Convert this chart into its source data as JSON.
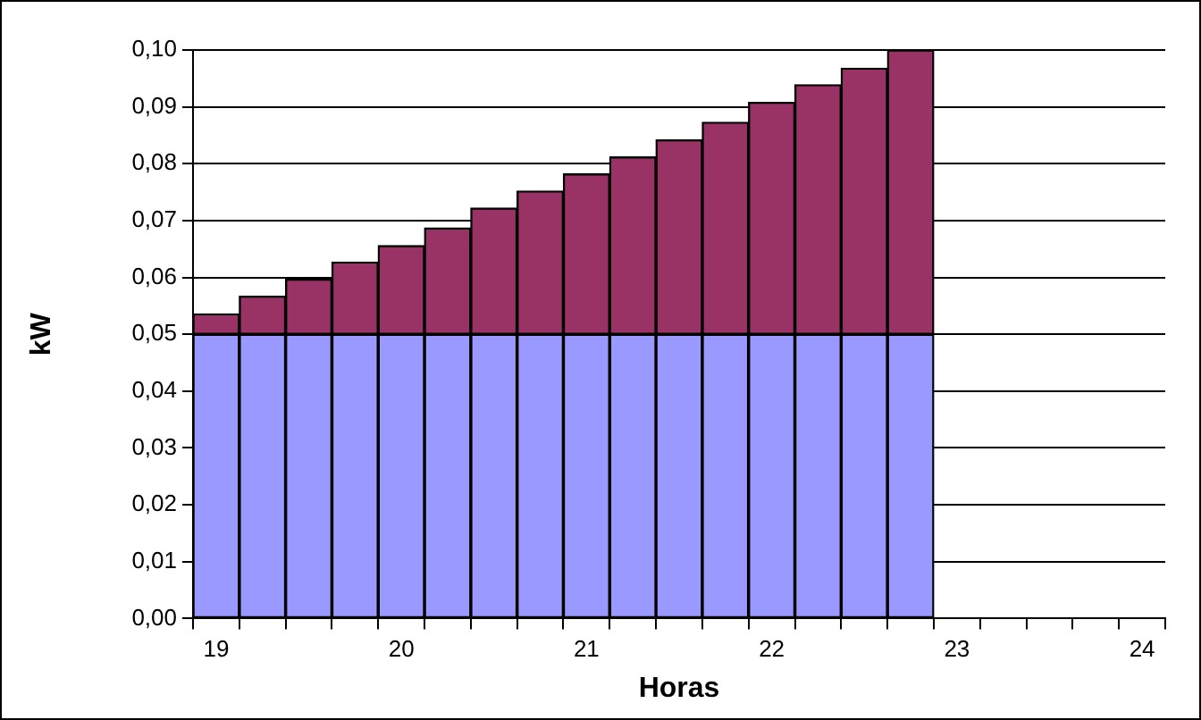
{
  "chart_data": {
    "type": "bar",
    "stacked": true,
    "xlabel": "Horas",
    "ylabel": "kW",
    "categories": [
      "19",
      null,
      null,
      null,
      "20",
      null,
      null,
      null,
      "21",
      null,
      null,
      null,
      "22",
      null,
      null,
      null,
      "23",
      null,
      null,
      null,
      "24"
    ],
    "series": [
      {
        "color": "#9999ff",
        "values": [
          0.05,
          0.05,
          0.05,
          0.05,
          0.05,
          0.05,
          0.05,
          0.05,
          0.05,
          0.05,
          0.05,
          0.05,
          0.05,
          0.05,
          0.05,
          0.05,
          null,
          null,
          null,
          null,
          null
        ]
      },
      {
        "color": "#993366",
        "values": [
          0.0036,
          0.0067,
          0.0097,
          0.0127,
          0.0156,
          0.0187,
          0.0222,
          0.0252,
          0.0282,
          0.0312,
          0.0342,
          0.0373,
          0.0408,
          0.0439,
          0.0468,
          0.05,
          null,
          null,
          null,
          null,
          null
        ]
      }
    ],
    "ylim": [
      0,
      0.1
    ],
    "yticks": [
      {
        "value": 0,
        "label": "0,00"
      },
      {
        "value": 0.01,
        "label": "0,01"
      },
      {
        "value": 0.02,
        "label": "0,02"
      },
      {
        "value": 0.03,
        "label": "0,03"
      },
      {
        "value": 0.04,
        "label": "0,04"
      },
      {
        "value": 0.05,
        "label": "0,05"
      },
      {
        "value": 0.06,
        "label": "0,06"
      },
      {
        "value": 0.07,
        "label": "0,07"
      },
      {
        "value": 0.08,
        "label": "0,08"
      },
      {
        "value": 0.09,
        "label": "0,09"
      },
      {
        "value": 0.1,
        "label": "0,10"
      }
    ],
    "grid": "y",
    "legend": false
  }
}
